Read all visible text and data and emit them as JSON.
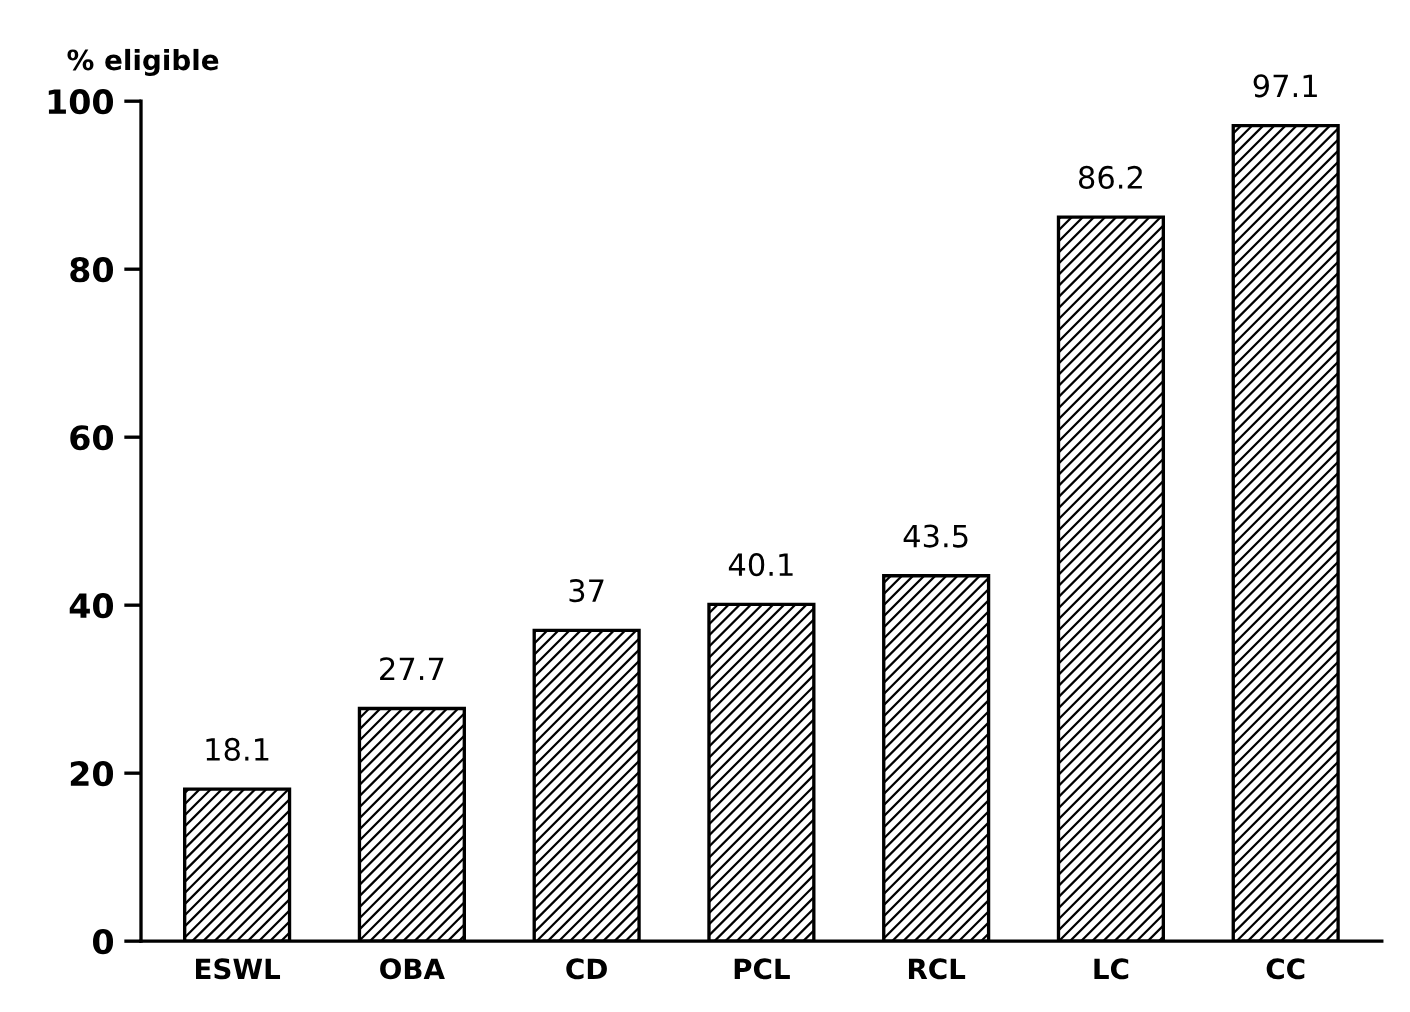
{
  "chart_data": {
    "type": "bar",
    "ylabel": "% eligible",
    "categories": [
      "ESWL",
      "OBA",
      "CD",
      "PCL",
      "RCL",
      "LC",
      "CC"
    ],
    "values": [
      18.1,
      27.7,
      37,
      40.1,
      43.5,
      86.2,
      97.1
    ],
    "color": "#000000",
    "ylim": [
      0,
      100
    ],
    "yticks": [
      0,
      20,
      40,
      60,
      80,
      100
    ],
    "data_labels": true,
    "grid": false,
    "legend": false
  }
}
